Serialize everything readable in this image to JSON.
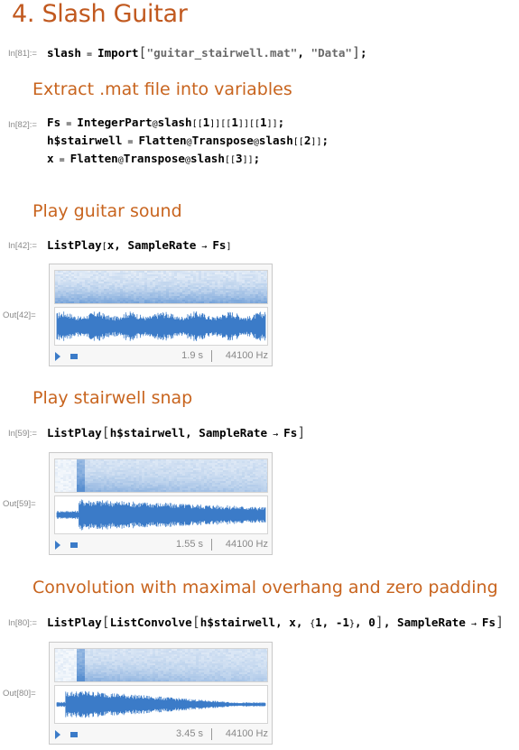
{
  "title": "4. Slash Guitar",
  "cells": {
    "in81": {
      "label": "In[81]:=",
      "tokens": [
        {
          "t": "slash",
          "c": "sym"
        },
        {
          "t": " = ",
          "c": "op"
        },
        {
          "t": "Import",
          "c": "sym"
        },
        {
          "t": "[",
          "c": "br"
        },
        {
          "t": "\"guitar_stairwell.mat\"",
          "c": "str"
        },
        {
          "t": ", ",
          "c": "sym"
        },
        {
          "t": "\"Data\"",
          "c": "str"
        },
        {
          "t": "]",
          "c": "br"
        },
        {
          "t": ";",
          "c": "sym"
        }
      ]
    },
    "section1": "Extract .mat file into variables",
    "in82": {
      "label": "In[82]:=",
      "lines": [
        [
          {
            "t": "Fs",
            "c": "sym"
          },
          {
            "t": " = ",
            "c": "op"
          },
          {
            "t": "IntegerPart",
            "c": "sym"
          },
          {
            "t": "@",
            "c": "op"
          },
          {
            "t": "slash",
            "c": "sym"
          },
          {
            "t": "[[",
            "c": "sm"
          },
          {
            "t": "1",
            "c": "sym"
          },
          {
            "t": "]][[",
            "c": "sm"
          },
          {
            "t": "1",
            "c": "sym"
          },
          {
            "t": "]][[",
            "c": "sm"
          },
          {
            "t": "1",
            "c": "sym"
          },
          {
            "t": "]]",
            "c": "sm"
          },
          {
            "t": ";",
            "c": "sym"
          }
        ],
        [
          {
            "t": "h$stairwell",
            "c": "sym"
          },
          {
            "t": " = ",
            "c": "op"
          },
          {
            "t": "Flatten",
            "c": "sym"
          },
          {
            "t": "@",
            "c": "op"
          },
          {
            "t": "Transpose",
            "c": "sym"
          },
          {
            "t": "@",
            "c": "op"
          },
          {
            "t": "slash",
            "c": "sym"
          },
          {
            "t": "[[",
            "c": "sm"
          },
          {
            "t": "2",
            "c": "sym"
          },
          {
            "t": "]]",
            "c": "sm"
          },
          {
            "t": ";",
            "c": "sym"
          }
        ],
        [
          {
            "t": "x",
            "c": "sym"
          },
          {
            "t": " = ",
            "c": "op"
          },
          {
            "t": "Flatten",
            "c": "sym"
          },
          {
            "t": "@",
            "c": "op"
          },
          {
            "t": "Transpose",
            "c": "sym"
          },
          {
            "t": "@",
            "c": "op"
          },
          {
            "t": "slash",
            "c": "sym"
          },
          {
            "t": "[[",
            "c": "sm"
          },
          {
            "t": "3",
            "c": "sym"
          },
          {
            "t": "]]",
            "c": "sm"
          },
          {
            "t": ";",
            "c": "sym"
          }
        ]
      ]
    },
    "section2": "Play guitar sound",
    "in42": {
      "label": "In[42]:=",
      "tokens": [
        {
          "t": "ListPlay",
          "c": "sym"
        },
        {
          "t": "[",
          "c": "sm"
        },
        {
          "t": "x, SampleRate",
          "c": "sym"
        },
        {
          "t": " → ",
          "c": "op"
        },
        {
          "t": "Fs",
          "c": "sym"
        },
        {
          "t": "]",
          "c": "sm"
        }
      ]
    },
    "out42": {
      "label": "Out[42]=",
      "duration": "1.9 s",
      "rate": "44100 Hz"
    },
    "section3": "Play stairwell snap",
    "in59": {
      "label": "In[59]:=",
      "tokens": [
        {
          "t": "ListPlay",
          "c": "sym"
        },
        {
          "t": "[",
          "c": "br"
        },
        {
          "t": "h$stairwell, SampleRate",
          "c": "sym"
        },
        {
          "t": " → ",
          "c": "op"
        },
        {
          "t": "Fs",
          "c": "sym"
        },
        {
          "t": "]",
          "c": "br"
        }
      ]
    },
    "out59": {
      "label": "Out[59]=",
      "duration": "1.55 s",
      "rate": "44100 Hz"
    },
    "section4": "Convolution with maximal overhang and zero padding",
    "in80": {
      "label": "In[80]:=",
      "tokens": [
        {
          "t": "ListPlay",
          "c": "sym"
        },
        {
          "t": "[",
          "c": "br"
        },
        {
          "t": "ListConvolve",
          "c": "sym"
        },
        {
          "t": "[",
          "c": "br"
        },
        {
          "t": "h$stairwell, x, ",
          "c": "sym"
        },
        {
          "t": "{",
          "c": "sm"
        },
        {
          "t": "1, -1",
          "c": "sym"
        },
        {
          "t": "}",
          "c": "sm"
        },
        {
          "t": ", 0",
          "c": "sym"
        },
        {
          "t": "]",
          "c": "br"
        },
        {
          "t": ", SampleRate",
          "c": "sym"
        },
        {
          "t": " → ",
          "c": "op"
        },
        {
          "t": "Fs",
          "c": "sym"
        },
        {
          "t": "]",
          "c": "br"
        }
      ]
    },
    "out80": {
      "label": "Out[80]=",
      "duration": "3.45 s",
      "rate": "44100 Hz"
    }
  },
  "colors": {
    "heading": "#c1591f",
    "wave": "#3b7bc8",
    "label": "#8a8a8a"
  },
  "icons": {
    "play": "play-icon",
    "stop": "stop-icon"
  }
}
